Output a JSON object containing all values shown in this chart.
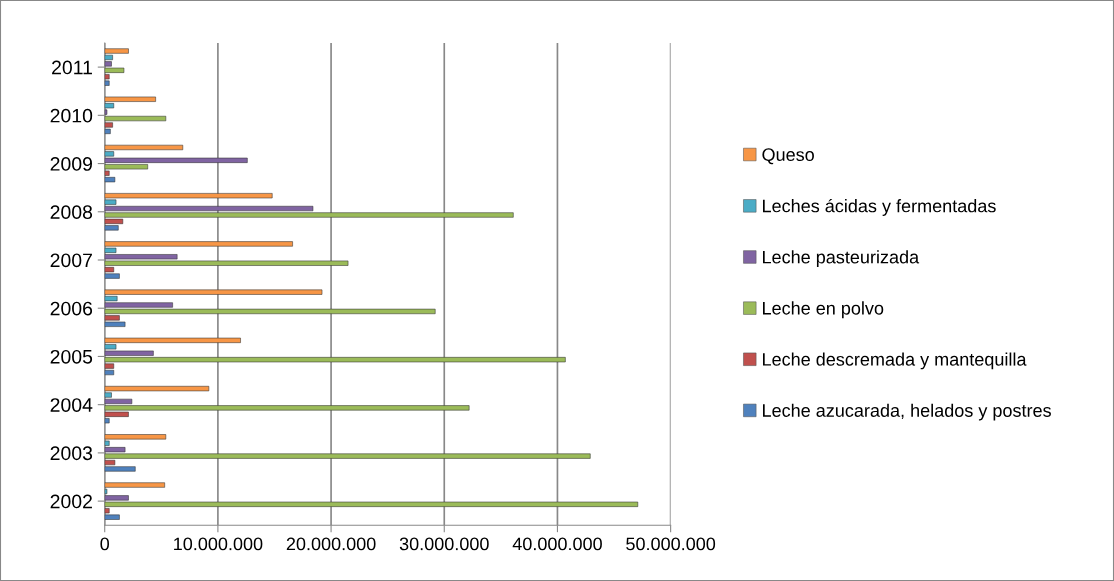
{
  "chart_data": {
    "type": "bar",
    "orientation": "horizontal",
    "categories": [
      "2011",
      "2010",
      "2009",
      "2008",
      "2007",
      "2006",
      "2005",
      "2004",
      "2003",
      "2002"
    ],
    "series": [
      {
        "name": "Leche azucarada, helados y postres",
        "color": "#4f81bd",
        "values": [
          400000,
          500000,
          900000,
          1200000,
          1300000,
          1800000,
          800000,
          400000,
          2700000,
          1300000
        ]
      },
      {
        "name": "Leche descremada y mantequilla",
        "color": "#c0504d",
        "values": [
          400000,
          700000,
          400000,
          1600000,
          800000,
          1300000,
          800000,
          2100000,
          900000,
          400000
        ]
      },
      {
        "name": "Leche en polvo",
        "color": "#9bbb59",
        "values": [
          1700000,
          5400000,
          3800000,
          36100000,
          21500000,
          29200000,
          40700000,
          32200000,
          42900000,
          47100000
        ]
      },
      {
        "name": "Leche pasteurizada",
        "color": "#8064a2",
        "values": [
          600000,
          200000,
          12600000,
          18400000,
          6400000,
          6000000,
          4300000,
          2400000,
          1800000,
          2100000
        ]
      },
      {
        "name": "Leches ácidas y fermentadas",
        "color": "#4bacc6",
        "values": [
          700000,
          800000,
          800000,
          1000000,
          1000000,
          1100000,
          1000000,
          600000,
          400000,
          200000
        ]
      },
      {
        "name": "Queso",
        "color": "#f79646",
        "values": [
          2100000,
          4500000,
          6900000,
          14800000,
          16600000,
          19200000,
          12000000,
          9200000,
          5400000,
          5300000
        ]
      }
    ],
    "xlim": [
      0,
      50000000
    ],
    "xticks": [
      0,
      {
        "value": 10000000,
        "label": "10.000.000"
      },
      {
        "value": 20000000,
        "label": "20.000.000"
      },
      {
        "value": 30000000,
        "label": "30.000.000"
      },
      {
        "value": 40000000,
        "label": "40.000.000"
      },
      {
        "value": 50000000,
        "label": "50.000.000"
      }
    ],
    "grid": "x",
    "legend": "right"
  }
}
